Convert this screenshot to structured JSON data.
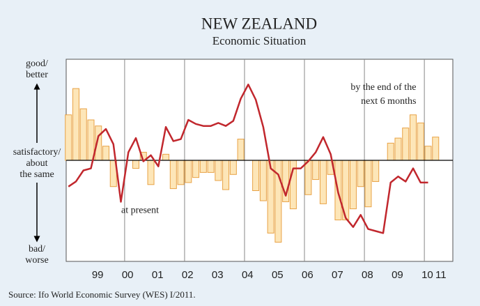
{
  "chart_data": {
    "type": "bar_line",
    "title": "NEW ZEALAND",
    "subtitle": "Economic Situation",
    "source": "Source: Ifo World Economic Survey (WES) I/2011.",
    "y_labels": {
      "top": [
        "good/",
        "better"
      ],
      "middle": [
        "satisfactory/",
        "about",
        "the same"
      ],
      "bottom": [
        "bad/",
        "worse"
      ]
    },
    "annotations": [
      {
        "lines": [
          "by the end of the",
          "next 6 months"
        ],
        "x": 2010.1,
        "y": 72
      },
      {
        "lines": [
          "at present"
        ],
        "x": 2000.7,
        "y": -50
      }
    ],
    "x": [
      1998.125,
      1998.375,
      1998.625,
      1998.875,
      1999.125,
      1999.375,
      1999.625,
      1999.875,
      2000.125,
      2000.375,
      2000.625,
      2000.875,
      2001.125,
      2001.375,
      2001.625,
      2001.875,
      2002.125,
      2002.375,
      2002.625,
      2002.875,
      2003.125,
      2003.375,
      2003.625,
      2003.875,
      2004.125,
      2004.375,
      2004.625,
      2004.875,
      2005.125,
      2005.375,
      2005.625,
      2005.875,
      2006.125,
      2006.375,
      2006.625,
      2006.875,
      2007.125,
      2007.375,
      2007.625,
      2007.875,
      2008.125,
      2008.375,
      2008.625,
      2008.875,
      2009.125,
      2009.375,
      2009.625,
      2009.875,
      2010.125,
      2010.375
    ],
    "series": [
      {
        "kind": "bar",
        "color": "#fde6b8",
        "stroke": "#e8a245",
        "values": [
          45,
          71,
          51,
          40,
          34,
          14,
          -26,
          null,
          null,
          -8,
          8,
          -24,
          null,
          6,
          -28,
          -24,
          -22,
          -17,
          -12,
          -12,
          -20,
          -29,
          -14,
          21,
          null,
          -30,
          -40,
          -72,
          -81,
          -41,
          -48,
          null,
          -34,
          -19,
          -43,
          -14,
          -59,
          -59,
          -48,
          -26,
          -46,
          -21,
          null,
          17,
          22,
          32,
          45,
          37,
          14,
          23
        ]
      },
      {
        "kind": "line",
        "color": "#c1272d",
        "values": [
          -26,
          -21,
          -10,
          -8,
          24,
          31,
          16,
          -41,
          8,
          22,
          -1,
          5,
          -6,
          33,
          19,
          21,
          40,
          36,
          34,
          34,
          37,
          34,
          39,
          61,
          75,
          60,
          33,
          -8,
          -14,
          -35,
          -8,
          -8,
          -1,
          8,
          23,
          6,
          -32,
          -57,
          -66,
          -54,
          -68,
          -70,
          -72,
          -22,
          -16,
          -21,
          -8,
          -22,
          -22,
          null
        ]
      }
    ],
    "xlim": [
      1998.05,
      2010.95
    ],
    "xticks": [
      {
        "value": 1999.1,
        "label": "99"
      },
      {
        "value": 2000.1,
        "label": "00"
      },
      {
        "value": 2001.1,
        "label": "01"
      },
      {
        "value": 2002.1,
        "label": "02"
      },
      {
        "value": 2003.1,
        "label": "03"
      },
      {
        "value": 2004.1,
        "label": "04"
      },
      {
        "value": 2005.1,
        "label": "05"
      },
      {
        "value": 2006.1,
        "label": "06"
      },
      {
        "value": 2007.1,
        "label": "07"
      },
      {
        "value": 2008.1,
        "label": "08"
      },
      {
        "value": 2009.1,
        "label": "09"
      },
      {
        "value": 2010.1,
        "label": "10"
      },
      {
        "value": 2010.55,
        "label": "11"
      }
    ],
    "xgrid": [
      2000,
      2002,
      2004,
      2006,
      2008,
      2010
    ],
    "ylim": [
      -100,
      100
    ],
    "yticks": [
      0
    ]
  }
}
